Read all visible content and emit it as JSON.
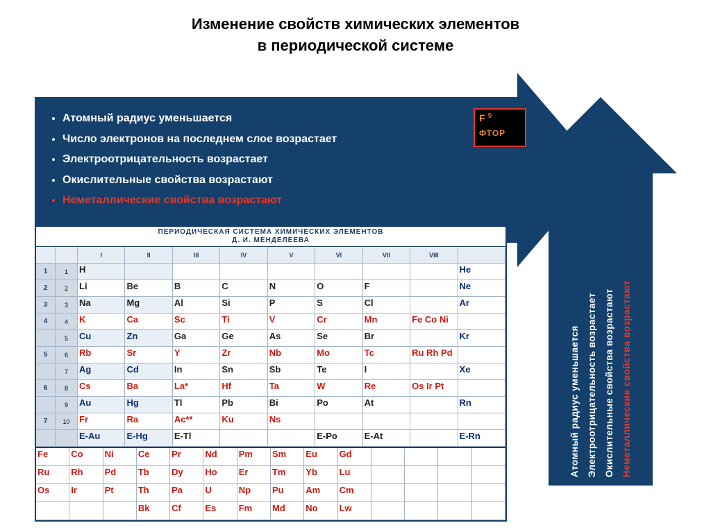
{
  "title": {
    "line1": "Изменение свойств химических элементов",
    "line2": "в периодической системе"
  },
  "colors": {
    "arrow_fill": "#14406b",
    "bullet_red": "#e03a2f",
    "fluorine_border": "#e03a2f",
    "fluorine_text": "#f08a24",
    "pt_border": "#1a3f6e",
    "pt_header_bg": "#d0dae7",
    "cell_border": "#a4b4c8"
  },
  "h_arrow": {
    "bullets": [
      {
        "text": "Атомный радиус уменьшается",
        "red": false
      },
      {
        "text": "Число электронов на последнем слое возрастает",
        "red": false
      },
      {
        "text": "Электроотрицательность  возрастает",
        "red": false
      },
      {
        "text": "Окислительные свойства возрастают",
        "red": false
      },
      {
        "text": "Неметаллические свойства возрастают",
        "red": true
      }
    ]
  },
  "v_arrow": {
    "lines": [
      {
        "text": "Атомный радиус уменьшается",
        "red": false
      },
      {
        "text": "Электроотрицательность возрастает",
        "red": false
      },
      {
        "text": "Окислительные свойства возрастают",
        "red": false
      },
      {
        "text": "Неметаллические свойства возрастают",
        "red": true
      }
    ]
  },
  "fluorine_box": {
    "symbol": "F",
    "number": "9",
    "name": "ФТОР"
  },
  "ptable": {
    "caption_line1": "ПЕРИОДИЧЕСКАЯ  СИСТЕМА  ХИМИЧЕСКИХ  ЭЛЕМЕНТОВ",
    "caption_line2": "Д. И. МЕНДЕЛЕЕВА",
    "col_headers": [
      "",
      "",
      "I",
      "II",
      "III",
      "IV",
      "V",
      "VI",
      "VII",
      "VIII",
      ""
    ],
    "periods": [
      {
        "p": "1",
        "r": "1",
        "k": "blue",
        "cells": [
          {
            "s": "H",
            "c": "black"
          },
          {
            "s": "",
            "c": ""
          },
          {
            "s": "",
            "c": ""
          },
          {
            "s": "",
            "c": ""
          },
          {
            "s": "",
            "c": ""
          },
          {
            "s": "",
            "c": ""
          },
          {
            "s": "",
            "c": ""
          },
          {
            "s": "",
            "c": ""
          },
          {
            "s": "He",
            "c": "blue"
          }
        ]
      },
      {
        "p": "2",
        "r": "2",
        "k": "blue",
        "cells": [
          {
            "s": "Li",
            "c": "black"
          },
          {
            "s": "Be",
            "c": "black"
          },
          {
            "s": "B",
            "c": "black"
          },
          {
            "s": "C",
            "c": "black"
          },
          {
            "s": "N",
            "c": "black"
          },
          {
            "s": "O",
            "c": "black"
          },
          {
            "s": "F",
            "c": "black"
          },
          {
            "s": "",
            "c": ""
          },
          {
            "s": "Ne",
            "c": "blue"
          }
        ]
      },
      {
        "p": "3",
        "r": "3",
        "k": "blue",
        "cells": [
          {
            "s": "Na",
            "c": "black"
          },
          {
            "s": "Mg",
            "c": "black"
          },
          {
            "s": "Al",
            "c": "black"
          },
          {
            "s": "Si",
            "c": "black"
          },
          {
            "s": "P",
            "c": "black"
          },
          {
            "s": "S",
            "c": "black"
          },
          {
            "s": "Cl",
            "c": "black"
          },
          {
            "s": "",
            "c": ""
          },
          {
            "s": "Ar",
            "c": "blue"
          }
        ]
      },
      {
        "p": "4",
        "r": "4",
        "k": "red",
        "cells": [
          {
            "s": "K",
            "c": "red"
          },
          {
            "s": "Ca",
            "c": "red"
          },
          {
            "s": "Sc",
            "c": "red"
          },
          {
            "s": "Ti",
            "c": "red"
          },
          {
            "s": "V",
            "c": "red"
          },
          {
            "s": "Cr",
            "c": "red"
          },
          {
            "s": "Mn",
            "c": "red"
          },
          {
            "s": "Fe Co Ni",
            "c": "red"
          },
          {
            "s": "",
            "c": ""
          }
        ]
      },
      {
        "p": "",
        "r": "5",
        "k": "blue",
        "cells": [
          {
            "s": "Cu",
            "c": "blue"
          },
          {
            "s": "Zn",
            "c": "blue"
          },
          {
            "s": "Ga",
            "c": "black"
          },
          {
            "s": "Ge",
            "c": "black"
          },
          {
            "s": "As",
            "c": "black"
          },
          {
            "s": "Se",
            "c": "black"
          },
          {
            "s": "Br",
            "c": "black"
          },
          {
            "s": "",
            "c": ""
          },
          {
            "s": "Kr",
            "c": "blue"
          }
        ]
      },
      {
        "p": "5",
        "r": "6",
        "k": "red",
        "cells": [
          {
            "s": "Rb",
            "c": "red"
          },
          {
            "s": "Sr",
            "c": "red"
          },
          {
            "s": "Y",
            "c": "red"
          },
          {
            "s": "Zr",
            "c": "red"
          },
          {
            "s": "Nb",
            "c": "red"
          },
          {
            "s": "Mo",
            "c": "red"
          },
          {
            "s": "Tc",
            "c": "red"
          },
          {
            "s": "Ru Rh Pd",
            "c": "red"
          },
          {
            "s": "",
            "c": ""
          }
        ]
      },
      {
        "p": "",
        "r": "7",
        "k": "blue",
        "cells": [
          {
            "s": "Ag",
            "c": "blue"
          },
          {
            "s": "Cd",
            "c": "blue"
          },
          {
            "s": "In",
            "c": "black"
          },
          {
            "s": "Sn",
            "c": "black"
          },
          {
            "s": "Sb",
            "c": "black"
          },
          {
            "s": "Te",
            "c": "black"
          },
          {
            "s": "I",
            "c": "black"
          },
          {
            "s": "",
            "c": ""
          },
          {
            "s": "Xe",
            "c": "blue"
          }
        ]
      },
      {
        "p": "6",
        "r": "8",
        "k": "red",
        "cells": [
          {
            "s": "Cs",
            "c": "red"
          },
          {
            "s": "Ba",
            "c": "red"
          },
          {
            "s": "La*",
            "c": "red"
          },
          {
            "s": "Hf",
            "c": "red"
          },
          {
            "s": "Ta",
            "c": "red"
          },
          {
            "s": "W",
            "c": "red"
          },
          {
            "s": "Re",
            "c": "red"
          },
          {
            "s": "Os Ir Pt",
            "c": "red"
          },
          {
            "s": "",
            "c": ""
          }
        ]
      },
      {
        "p": "",
        "r": "9",
        "k": "blue",
        "cells": [
          {
            "s": "Au",
            "c": "blue"
          },
          {
            "s": "Hg",
            "c": "blue"
          },
          {
            "s": "Tl",
            "c": "black"
          },
          {
            "s": "Pb",
            "c": "black"
          },
          {
            "s": "Bi",
            "c": "black"
          },
          {
            "s": "Po",
            "c": "black"
          },
          {
            "s": "At",
            "c": "black"
          },
          {
            "s": "",
            "c": ""
          },
          {
            "s": "Rn",
            "c": "blue"
          }
        ]
      },
      {
        "p": "7",
        "r": "10",
        "k": "red",
        "cells": [
          {
            "s": "Fr",
            "c": "red"
          },
          {
            "s": "Ra",
            "c": "red"
          },
          {
            "s": "Ac**",
            "c": "red"
          },
          {
            "s": "Ku",
            "c": "red"
          },
          {
            "s": "Ns",
            "c": "red"
          },
          {
            "s": "",
            "c": "red"
          },
          {
            "s": "",
            "c": "red"
          },
          {
            "s": "",
            "c": ""
          },
          {
            "s": "",
            "c": ""
          }
        ]
      },
      {
        "p": "",
        "r": "",
        "k": "blue",
        "cells": [
          {
            "s": "E-Au",
            "c": "blue"
          },
          {
            "s": "E-Hg",
            "c": "blue"
          },
          {
            "s": "E-Tl",
            "c": "black"
          },
          {
            "s": "",
            "c": ""
          },
          {
            "s": "",
            "c": ""
          },
          {
            "s": "E-Po",
            "c": "black"
          },
          {
            "s": "E-At",
            "c": "black"
          },
          {
            "s": "",
            "c": ""
          },
          {
            "s": "E-Rn",
            "c": "blue"
          }
        ]
      }
    ],
    "extra_rows": [
      [
        "Fe",
        "Co",
        "Ni",
        "Ce",
        "Pr",
        "Nd",
        "Pm",
        "Sm",
        "Eu",
        "Gd",
        "",
        "",
        "",
        ""
      ],
      [
        "Ru",
        "Rh",
        "Pd",
        "Tb",
        "Dy",
        "Ho",
        "Er",
        "Tm",
        "Yb",
        "Lu",
        "",
        "",
        "",
        ""
      ],
      [
        "Os",
        "Ir",
        "Pt",
        "Th",
        "Pa",
        "U",
        "Np",
        "Pu",
        "Am",
        "Cm",
        "",
        "",
        "",
        ""
      ],
      [
        "",
        "",
        "",
        "Bk",
        "Cf",
        "Es",
        "Fm",
        "Md",
        "No",
        "Lw",
        "",
        "",
        "",
        ""
      ]
    ]
  }
}
